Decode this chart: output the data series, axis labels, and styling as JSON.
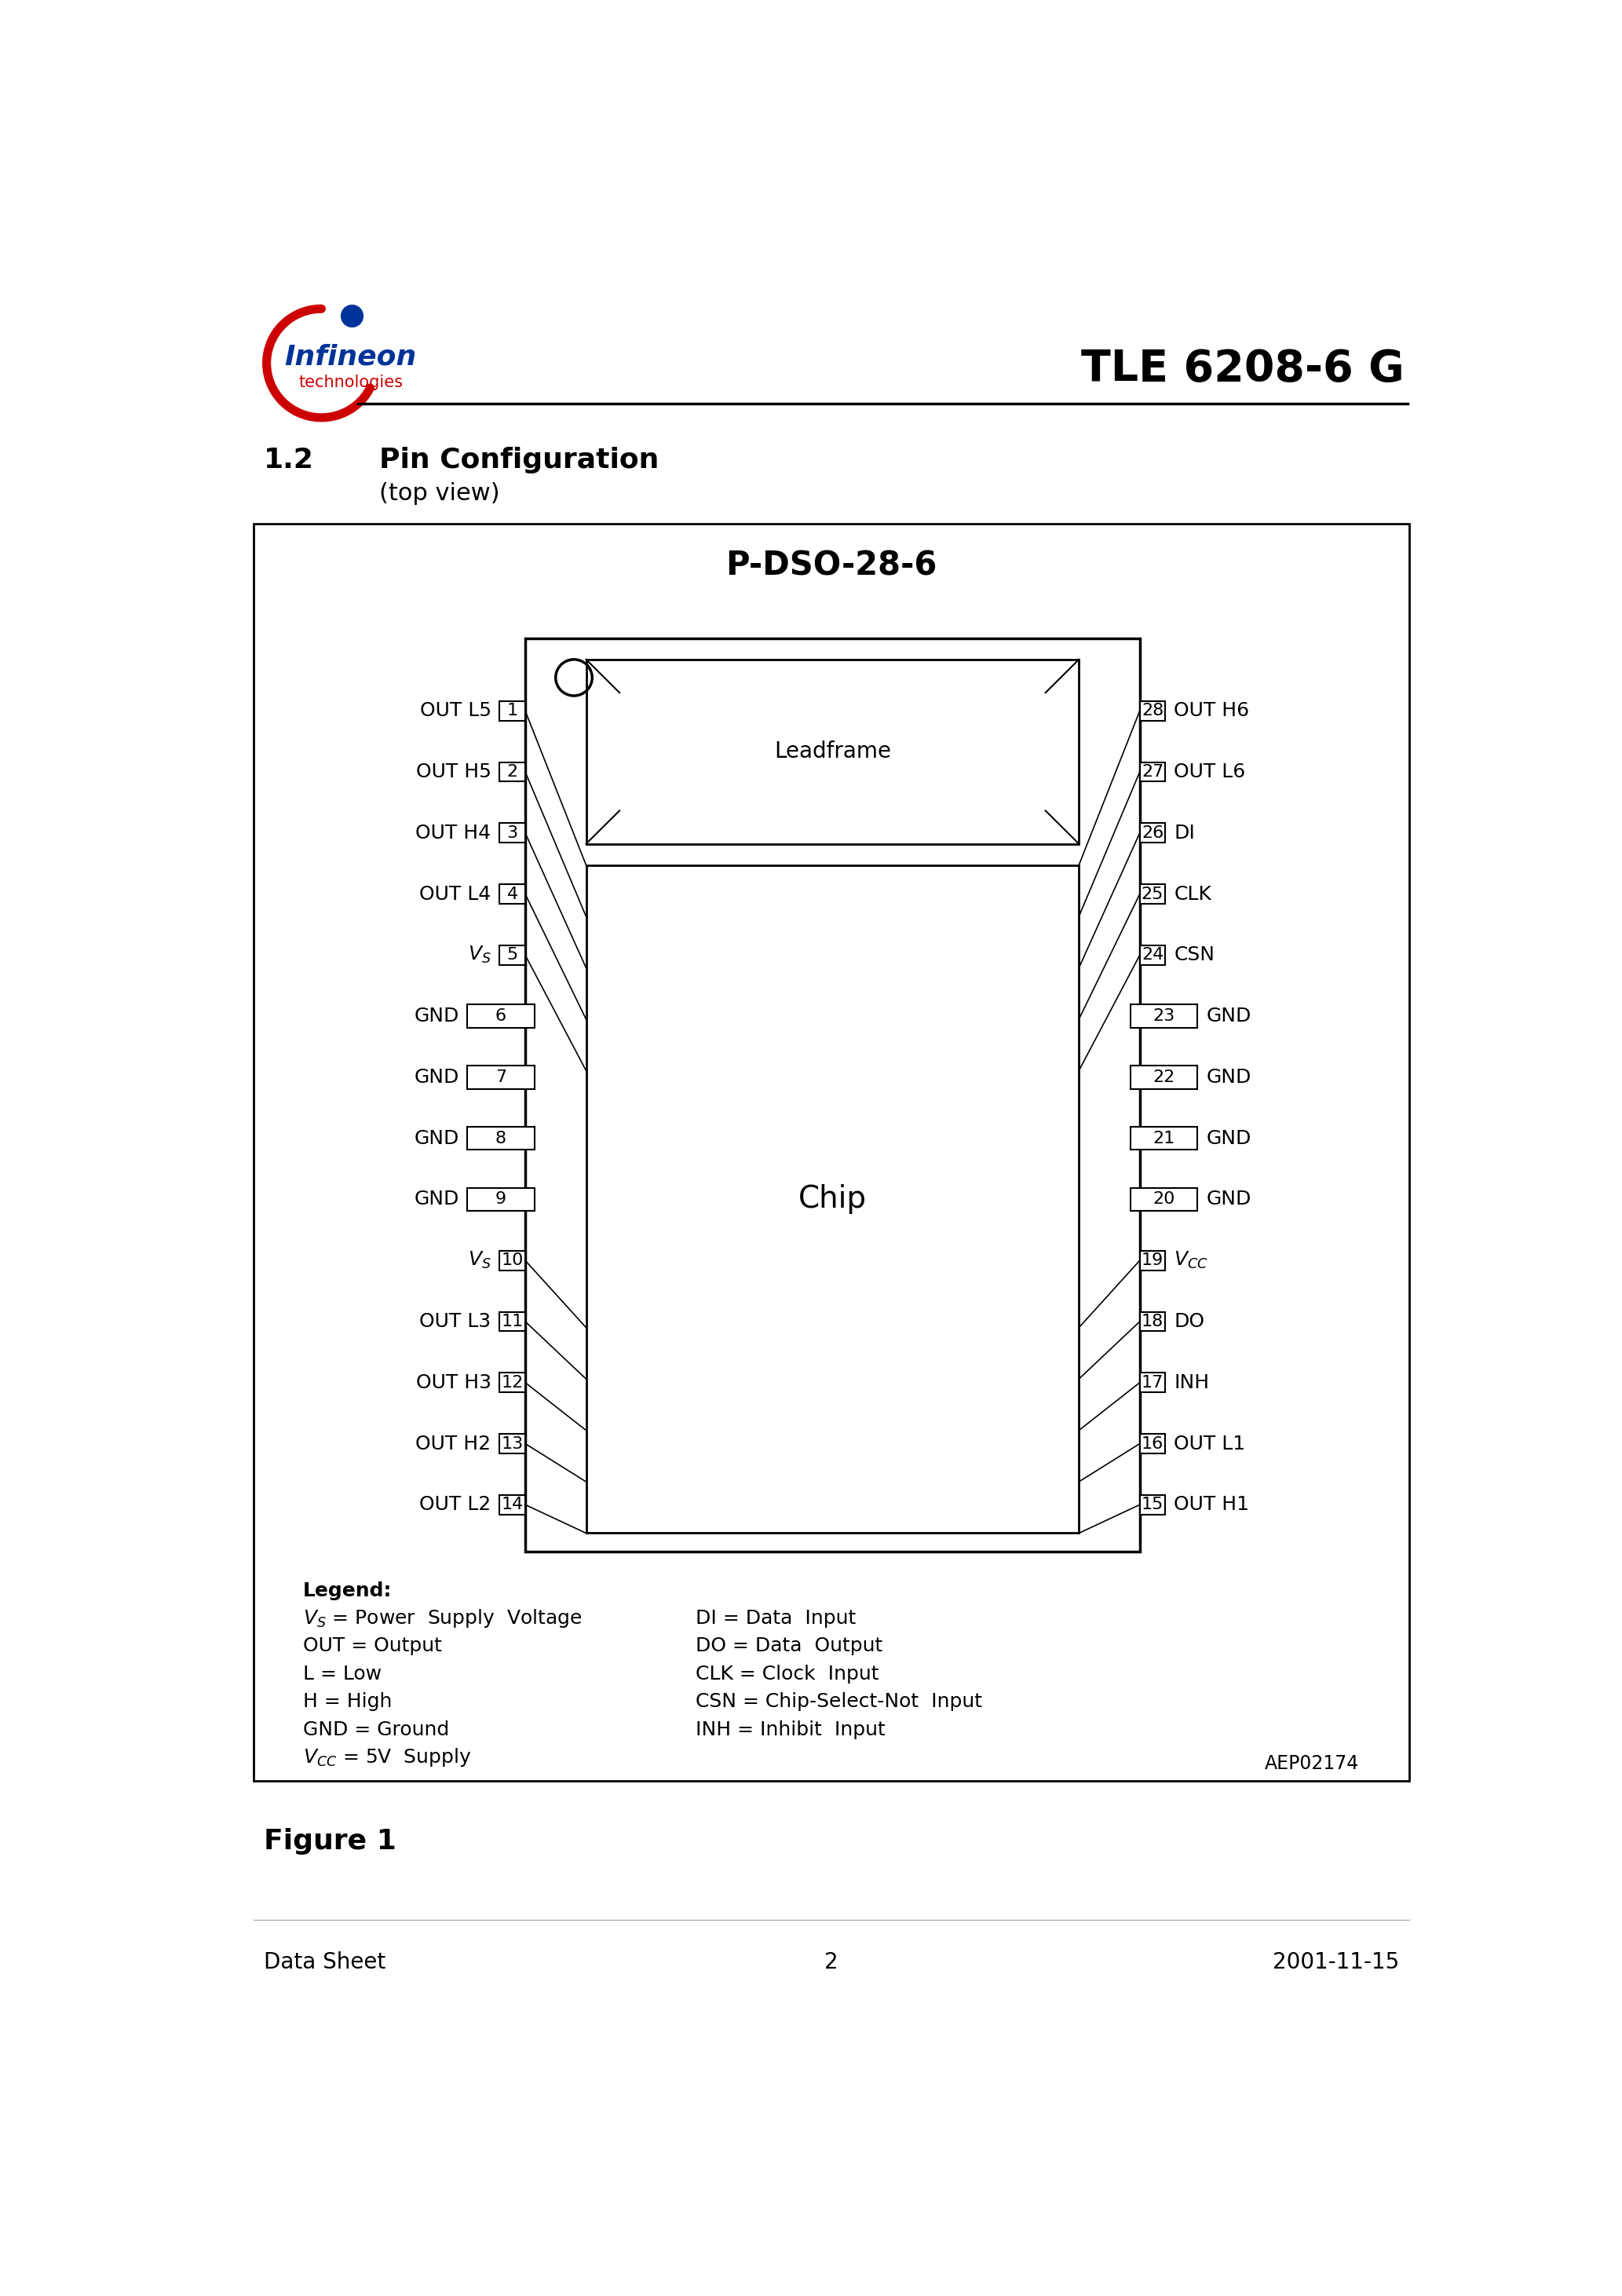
{
  "title": "TLE 6208-6 G",
  "section": "1.2",
  "section_title": "Pin Configuration",
  "section_subtitle": "(top view)",
  "chip_title": "P-DSO-28-6",
  "chip_label": "Chip",
  "leadframe_label": "Leadframe",
  "figure_label": "Figure 1",
  "footer_left": "Data Sheet",
  "footer_center": "2",
  "footer_right": "2001-11-15",
  "aep_code": "AEP02174",
  "left_pins": [
    {
      "num": 1,
      "label": "OUT L5",
      "wide": false
    },
    {
      "num": 2,
      "label": "OUT H5",
      "wide": false
    },
    {
      "num": 3,
      "label": "OUT H4",
      "wide": false
    },
    {
      "num": 4,
      "label": "OUT L4",
      "wide": false
    },
    {
      "num": 5,
      "label": "V_S",
      "wide": false
    },
    {
      "num": 6,
      "label": "GND",
      "wide": true
    },
    {
      "num": 7,
      "label": "GND",
      "wide": true
    },
    {
      "num": 8,
      "label": "GND",
      "wide": true
    },
    {
      "num": 9,
      "label": "GND",
      "wide": true
    },
    {
      "num": 10,
      "label": "V_S",
      "wide": false
    },
    {
      "num": 11,
      "label": "OUT L3",
      "wide": false
    },
    {
      "num": 12,
      "label": "OUT H3",
      "wide": false
    },
    {
      "num": 13,
      "label": "OUT H2",
      "wide": false
    },
    {
      "num": 14,
      "label": "OUT L2",
      "wide": false
    }
  ],
  "right_pins": [
    {
      "num": 28,
      "label": "OUT H6",
      "wide": false
    },
    {
      "num": 27,
      "label": "OUT L6",
      "wide": false
    },
    {
      "num": 26,
      "label": "DI",
      "wide": false
    },
    {
      "num": 25,
      "label": "CLK",
      "wide": false
    },
    {
      "num": 24,
      "label": "CSN",
      "wide": false
    },
    {
      "num": 23,
      "label": "GND",
      "wide": true
    },
    {
      "num": 22,
      "label": "GND",
      "wide": true
    },
    {
      "num": 21,
      "label": "GND",
      "wide": true
    },
    {
      "num": 20,
      "label": "GND",
      "wide": true
    },
    {
      "num": 19,
      "label": "V_CC",
      "wide": false
    },
    {
      "num": 18,
      "label": "DO",
      "wide": false
    },
    {
      "num": 17,
      "label": "INH",
      "wide": false
    },
    {
      "num": 16,
      "label": "OUT L1",
      "wide": false
    },
    {
      "num": 15,
      "label": "OUT H1",
      "wide": false
    }
  ],
  "bg_color": "#ffffff",
  "infineon_blue": "#003399",
  "infineon_red": "#cc0000"
}
